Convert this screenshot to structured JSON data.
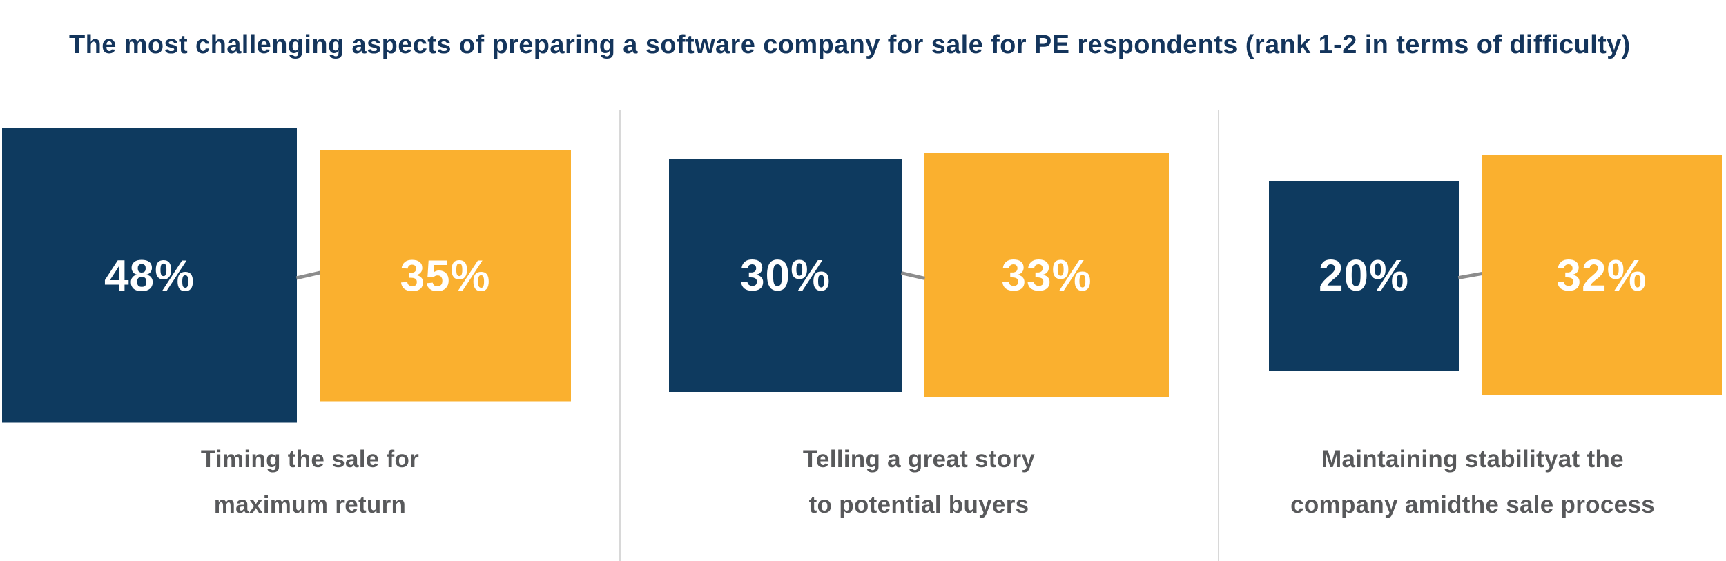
{
  "title": "The most challenging aspects of preparing a software company for sale for PE respondents (rank 1-2 in terms of difficulty)",
  "colors": {
    "navy": "#0e3a5f",
    "amber": "#fab02f",
    "title_text": "#14355c",
    "label_text": "#58595b",
    "value_text": "#ffffff",
    "connector": "#8c8c8c",
    "divider": "#d8d8d8"
  },
  "groups": [
    {
      "navy_label": "48%",
      "amber_label": "35%",
      "caption_line1": "Timing the sale for",
      "caption_line2": "maximum return"
    },
    {
      "navy_label": "30%",
      "amber_label": "33%",
      "caption_line1": "Telling a great story",
      "caption_line2": "to potential buyers"
    },
    {
      "navy_label": "20%",
      "amber_label": "32%",
      "caption_line1": "Maintaining stabilityat the",
      "caption_line2": "company amidthe sale process"
    }
  ],
  "chart_data": {
    "type": "bar",
    "variant": "paired proportional-area squares (square side ~ sqrt(value))",
    "title": "The most challenging aspects of preparing a software company for sale for PE respondents (rank 1-2 in terms of difficulty)",
    "categories": [
      "Timing the sale for maximum return",
      "Telling a great story to potential buyers",
      "Maintaining stabilityat the company amidthe sale process"
    ],
    "series": [
      {
        "name": "navy square",
        "color": "#0e3a5f",
        "values": [
          48,
          30,
          20
        ]
      },
      {
        "name": "amber square",
        "color": "#fab02f",
        "values": [
          35,
          33,
          32
        ]
      }
    ],
    "unit": "%",
    "value_labels_shown": true,
    "legend": "none",
    "notes": "Each pair: navy square joined to amber square by a short slanted gray connector at mid-height; vertical light-gray dividers separate the three categories."
  }
}
